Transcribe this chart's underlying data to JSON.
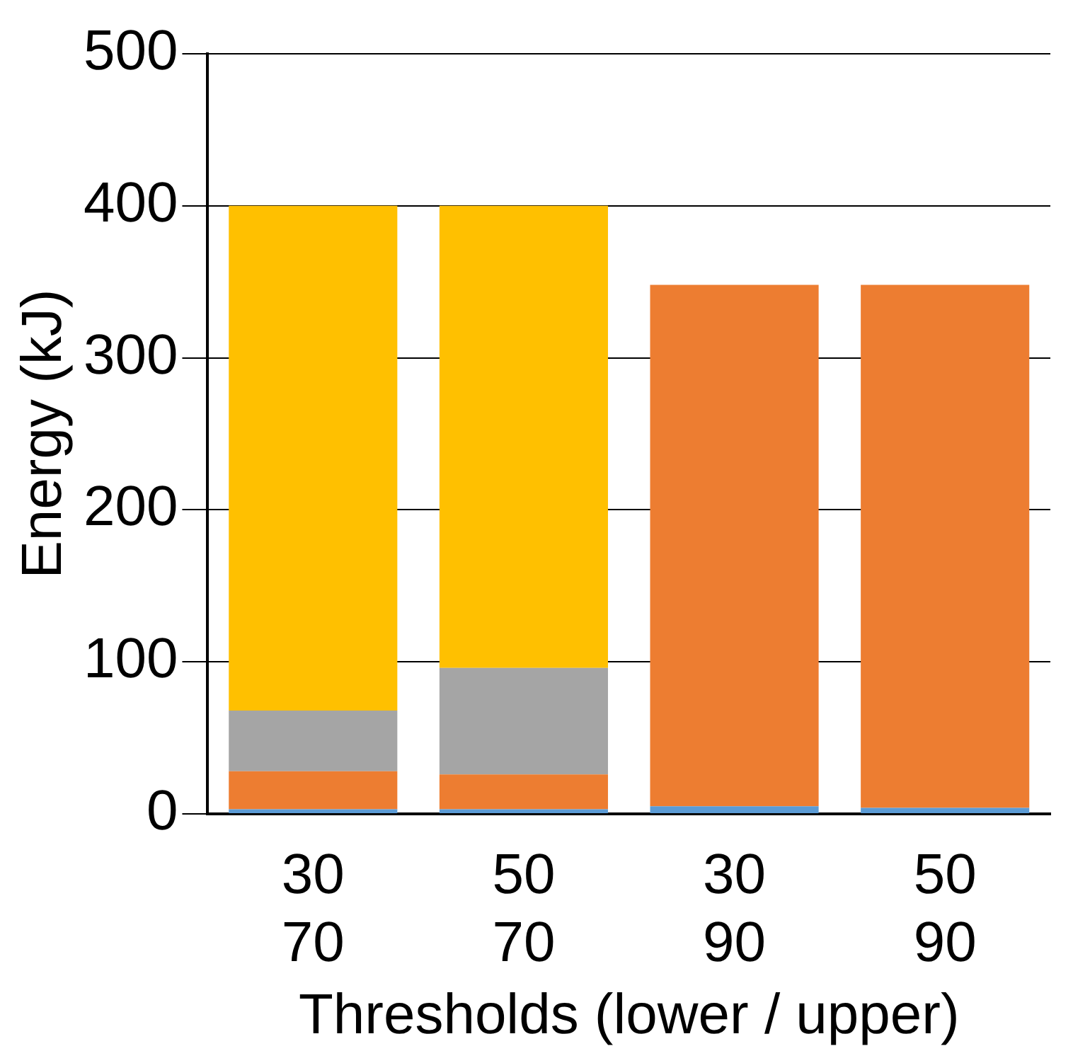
{
  "chart_data": {
    "type": "bar",
    "stacked": true,
    "xlabel": "Thresholds (lower / upper)",
    "ylabel": "Energy (kJ)",
    "categories": [
      "30\n70",
      "50\n70",
      "30\n90",
      "50\n90"
    ],
    "series": [
      {
        "color": "#5b9bd5",
        "values": [
          3,
          3,
          5,
          4
        ]
      },
      {
        "color": "#ed7d31",
        "values": [
          25,
          23,
          343,
          344
        ]
      },
      {
        "color": "#a5a5a5",
        "values": [
          40,
          70,
          0,
          0
        ]
      },
      {
        "color": "#ffc000",
        "values": [
          332,
          304,
          0,
          0
        ]
      }
    ],
    "ylim": [
      0,
      500
    ],
    "yticks": [
      0,
      100,
      200,
      300,
      400,
      500
    ],
    "grid": "y",
    "legend": false
  }
}
